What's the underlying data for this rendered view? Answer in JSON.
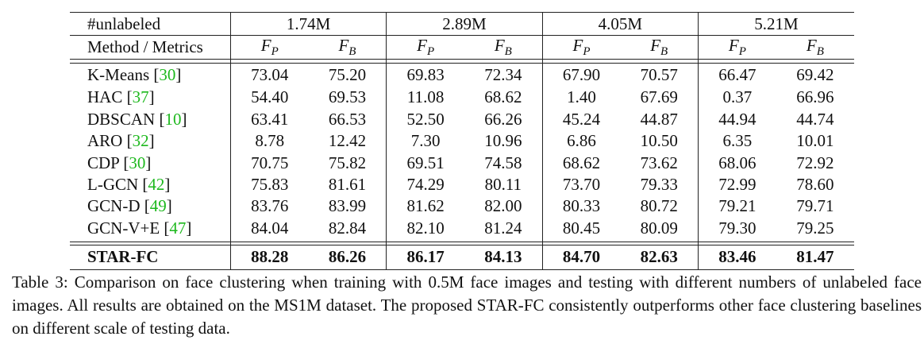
{
  "table": {
    "header": {
      "corner_label": "#unlabeled",
      "method_label": "Method / Metrics",
      "groups": [
        "1.74M",
        "2.89M",
        "4.05M",
        "5.21M"
      ],
      "metric_base": "F",
      "metrics": [
        "P",
        "B"
      ]
    },
    "rows": [
      {
        "method": "K-Means",
        "cite": "30",
        "values": [
          "73.04",
          "75.20",
          "69.83",
          "72.34",
          "67.90",
          "70.57",
          "66.47",
          "69.42"
        ]
      },
      {
        "method": "HAC",
        "cite": "37",
        "values": [
          "54.40",
          "69.53",
          "11.08",
          "68.62",
          "1.40",
          "67.69",
          "0.37",
          "66.96"
        ]
      },
      {
        "method": "DBSCAN",
        "cite": "10",
        "values": [
          "63.41",
          "66.53",
          "52.50",
          "66.26",
          "45.24",
          "44.87",
          "44.94",
          "44.74"
        ]
      },
      {
        "method": "ARO",
        "cite": "32",
        "values": [
          "8.78",
          "12.42",
          "7.30",
          "10.96",
          "6.86",
          "10.50",
          "6.35",
          "10.01"
        ]
      },
      {
        "method": "CDP",
        "cite": "30",
        "values": [
          "70.75",
          "75.82",
          "69.51",
          "74.58",
          "68.62",
          "73.62",
          "68.06",
          "72.92"
        ]
      },
      {
        "method": "L-GCN",
        "cite": "42",
        "values": [
          "75.83",
          "81.61",
          "74.29",
          "80.11",
          "73.70",
          "79.33",
          "72.99",
          "78.60"
        ]
      },
      {
        "method": "GCN-D",
        "cite": "49",
        "values": [
          "83.76",
          "83.99",
          "81.62",
          "82.00",
          "80.33",
          "80.72",
          "79.21",
          "79.71"
        ]
      },
      {
        "method": "GCN-V+E",
        "cite": "47",
        "values": [
          "84.04",
          "82.84",
          "82.10",
          "81.24",
          "80.45",
          "80.09",
          "79.30",
          "79.25"
        ]
      }
    ],
    "ours": {
      "method": "STAR-FC",
      "values": [
        "88.28",
        "86.26",
        "86.17",
        "84.13",
        "84.70",
        "82.63",
        "83.46",
        "81.47"
      ]
    }
  },
  "caption": "Table 3: Comparison on face clustering when training with 0.5M face images and testing with different numbers of unlabeled face images. All results are obtained on the MS1M dataset. The proposed STAR-FC consistently outperforms other face clustering baselines on different scale of testing data.",
  "colors": {
    "citation": "#1db81d",
    "text": "#111111"
  }
}
